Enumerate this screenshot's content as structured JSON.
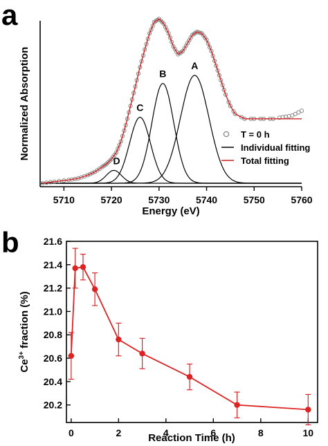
{
  "panels": {
    "a": "a",
    "b": "b"
  },
  "chart_data": [
    {
      "type": "line",
      "panel": "a",
      "xlabel": "Energy (eV)",
      "ylabel": "Normalized Absorption",
      "xlim": [
        5705,
        5760
      ],
      "xticks": [
        5710,
        5720,
        5730,
        5740,
        5750,
        5760
      ],
      "y_ticks_labeled": false,
      "grid": false,
      "legend_position": "right",
      "legend": [
        {
          "label": "T = 0 h",
          "style": "open-circle",
          "color": "#888888"
        },
        {
          "label": "Individual fitting",
          "style": "line",
          "color": "#000000"
        },
        {
          "label": "Total fitting",
          "style": "line",
          "color": "#cc2222"
        }
      ],
      "peaks": [
        {
          "label": "D",
          "center": 5720.5,
          "height": 0.08,
          "sigma": 1.6
        },
        {
          "label": "C",
          "center": 5726.0,
          "height": 0.41,
          "sigma": 2.2
        },
        {
          "label": "B",
          "center": 5730.8,
          "height": 0.62,
          "sigma": 2.3
        },
        {
          "label": "A",
          "center": 5737.5,
          "height": 0.67,
          "sigma": 3.0
        }
      ],
      "series": [
        {
          "name": "T = 0 h",
          "style": "open-circle",
          "x": [
            5705.5,
            5708,
            5711,
            5713,
            5715,
            5716.5,
            5718,
            5719,
            5720,
            5721,
            5722,
            5723,
            5724,
            5725,
            5726,
            5727,
            5728,
            5729,
            5730,
            5731,
            5732,
            5733,
            5734,
            5735,
            5736,
            5737,
            5738,
            5739,
            5740,
            5741,
            5742,
            5743,
            5744,
            5745,
            5746,
            5748,
            5750,
            5752,
            5754,
            5756,
            5758,
            5760
          ],
          "y": [
            0.0,
            0.01,
            0.02,
            0.03,
            0.05,
            0.07,
            0.1,
            0.12,
            0.15,
            0.19,
            0.26,
            0.36,
            0.48,
            0.6,
            0.72,
            0.83,
            0.93,
            1.0,
            1.02,
            0.99,
            0.93,
            0.85,
            0.8,
            0.82,
            0.87,
            0.92,
            0.94,
            0.93,
            0.89,
            0.82,
            0.73,
            0.64,
            0.55,
            0.48,
            0.43,
            0.4,
            0.4,
            0.4,
            0.4,
            0.41,
            0.42,
            0.45
          ]
        },
        {
          "name": "Total fitting",
          "style": "line",
          "color": "#cc2222",
          "x": [
            5705.5,
            5708,
            5711,
            5713,
            5715,
            5716.5,
            5718,
            5719,
            5720,
            5721,
            5722,
            5723,
            5724,
            5725,
            5726,
            5727,
            5728,
            5729,
            5730,
            5731,
            5732,
            5733,
            5734,
            5735,
            5736,
            5737,
            5738,
            5739,
            5740,
            5741,
            5742,
            5743,
            5744,
            5745,
            5746,
            5748,
            5750,
            5752,
            5754,
            5756,
            5758,
            5760
          ],
          "y": [
            0.0,
            0.01,
            0.02,
            0.03,
            0.05,
            0.07,
            0.1,
            0.12,
            0.15,
            0.19,
            0.26,
            0.36,
            0.48,
            0.6,
            0.72,
            0.83,
            0.93,
            1.0,
            1.02,
            0.99,
            0.93,
            0.85,
            0.8,
            0.82,
            0.87,
            0.92,
            0.94,
            0.93,
            0.89,
            0.82,
            0.73,
            0.64,
            0.55,
            0.48,
            0.43,
            0.4,
            0.4,
            0.4,
            0.4,
            0.4,
            0.4,
            0.4
          ]
        }
      ]
    },
    {
      "type": "line",
      "panel": "b",
      "xlabel": "Reaction Time (h)",
      "ylabel": "Ce3+ fraction (%)",
      "xlim": [
        -0.2,
        10.4
      ],
      "ylim": [
        20.05,
        21.6
      ],
      "xticks": [
        0,
        2,
        4,
        6,
        8,
        10
      ],
      "yticks": [
        20.2,
        20.4,
        20.6,
        20.8,
        21.0,
        21.2,
        21.4,
        21.6
      ],
      "grid": false,
      "color": "#dd2222",
      "series": [
        {
          "name": "",
          "x": [
            0,
            0.17,
            0.5,
            1,
            2,
            3,
            5,
            7,
            10
          ],
          "y": [
            20.62,
            21.37,
            21.38,
            21.19,
            20.76,
            20.64,
            20.44,
            20.2,
            20.16
          ],
          "error": [
            0.2,
            0.17,
            0.11,
            0.14,
            0.14,
            0.13,
            0.11,
            0.11,
            0.13
          ]
        }
      ]
    }
  ]
}
